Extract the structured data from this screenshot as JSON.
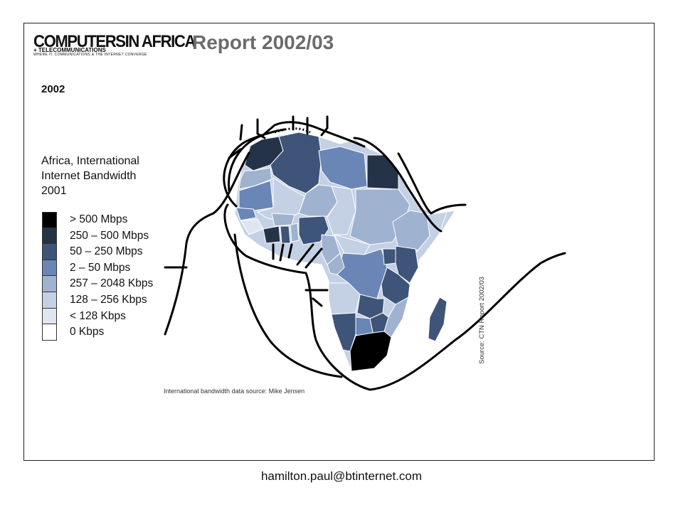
{
  "header": {
    "logo_line1": "COMPUTERSIN AFRICA",
    "logo_line2": "+ TELECOMMUNICATIONS",
    "logo_tagline": "WHERE IT, COMMUNICATIONS & THE INTERNET CONVERGE",
    "report_title": "Report 2002/03"
  },
  "year_label": "2002",
  "subtitle_lines": [
    "Africa, International",
    "Internet Bandwidth",
    "2001"
  ],
  "legend": {
    "items": [
      {
        "label": "> 500 Mbps",
        "color": "#000000"
      },
      {
        "label": "250 – 500 Mbps",
        "color": "#253349"
      },
      {
        "label": "50 – 250 Mbps",
        "color": "#3e5478"
      },
      {
        "label": "2 – 50 Mbps",
        "color": "#6986b7"
      },
      {
        "label": "257 – 2048 Kbps",
        "color": "#9fb2d0"
      },
      {
        "label": "128 – 256 Kbps",
        "color": "#c4d0e4"
      },
      {
        "label": "< 128 Kbps",
        "color": "#dfe6f0"
      },
      {
        "label": "0 Kbps",
        "color": "#ffffff"
      }
    ]
  },
  "source_note": "International bandwidth data source: Mike Jensen",
  "source_vertical": "Source: CTN Report 2002/03",
  "footer_email": "hamilton.paul@btinternet.com"
}
